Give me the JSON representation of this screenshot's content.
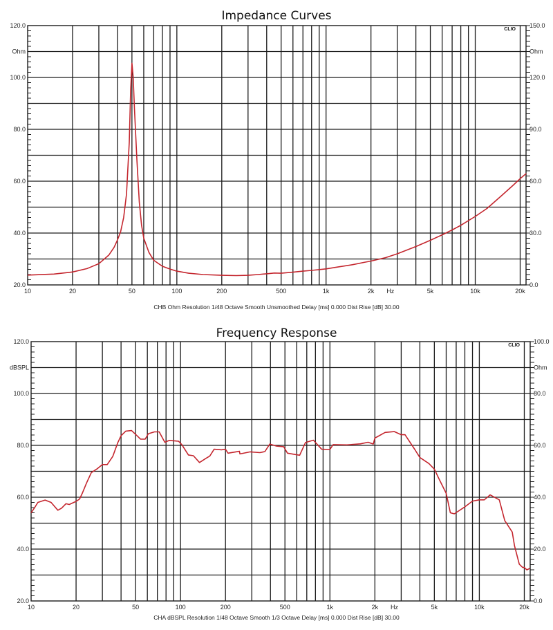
{
  "chart_data": [
    {
      "type": "line",
      "title": "Impedance Curves",
      "footer": "CHB Ohm Resolution 1/48 Octave Smooth Unsmoothed Delay [ms] 0.000 Dist Rise [dB] 30.00",
      "logo": "CLIO",
      "xscale": "log",
      "xlim": [
        10,
        21900
      ],
      "ylim": [
        20,
        120
      ],
      "ylim_right": [
        0,
        150
      ],
      "grid": true,
      "x_ticks": [
        "10",
        "20",
        "50",
        "100",
        "200",
        "500",
        "1k",
        "2k",
        "Hz",
        "5k",
        "10k",
        "20k"
      ],
      "x_tick_values": [
        10,
        20,
        50,
        100,
        200,
        500,
        1000,
        2000,
        2700,
        5000,
        10000,
        20000
      ],
      "y_ticks_left": [
        "120.0",
        "Ohm",
        "100.0",
        "80.0",
        "60.0",
        "40.0",
        "20.0"
      ],
      "y_tick_values_left": [
        120,
        110,
        100,
        80,
        60,
        40,
        20
      ],
      "y_ticks_right": [
        "150.0",
        "Ohm",
        "120.0",
        "90.0",
        "60.0",
        "30.0",
        "0.0"
      ],
      "ylabel": "Ohm",
      "xlabel": "Hz",
      "series": [
        {
          "name": "Impedance",
          "color": "#c4262e",
          "x": [
            10,
            15,
            20,
            25,
            30,
            35,
            38,
            40,
            42,
            44,
            46,
            48,
            49,
            50,
            51,
            52,
            54,
            56,
            58,
            60,
            65,
            70,
            80,
            90,
            100,
            120,
            150,
            200,
            250,
            300,
            350,
            400,
            450,
            500,
            600,
            700,
            800,
            1000,
            1200,
            1500,
            1800,
            2000,
            2500,
            3000,
            4000,
            5000,
            6000,
            7000,
            8000,
            10000,
            12000,
            15000,
            18000,
            20000,
            22000
          ],
          "y": [
            23.8,
            24.2,
            25.0,
            26.3,
            28.2,
            31.5,
            34.5,
            37.3,
            40.5,
            46,
            55,
            75,
            95,
            105.5,
            100,
            88,
            68,
            52,
            43,
            38,
            32.5,
            29.5,
            27.2,
            26.1,
            25.3,
            24.5,
            24.0,
            23.7,
            23.6,
            23.7,
            24.0,
            24.3,
            24.6,
            24.5,
            24.9,
            25.3,
            25.6,
            26.2,
            26.9,
            27.8,
            28.7,
            29.2,
            30.5,
            32.0,
            34.8,
            37.2,
            39.3,
            41.2,
            43.0,
            46.4,
            49.5,
            54.4,
            58.5,
            61,
            63
          ]
        }
      ]
    },
    {
      "type": "line",
      "title": "Frequency Response",
      "footer": "CHA dBSPL Resolution 1/48 Octave Smooth 1/3 Octave Delay [ms] 0.000 Dist Rise [dB] 30.00",
      "logo": "CLIO",
      "xscale": "log",
      "xlim": [
        10,
        21900
      ],
      "ylim": [
        20,
        120
      ],
      "ylim_right": [
        0,
        100
      ],
      "grid": true,
      "x_ticks": [
        "10",
        "20",
        "50",
        "100",
        "200",
        "500",
        "1k",
        "2k",
        "Hz",
        "5k",
        "10k",
        "20k"
      ],
      "x_tick_values": [
        10,
        20,
        50,
        100,
        200,
        500,
        1000,
        2000,
        2700,
        5000,
        10000,
        20000
      ],
      "y_ticks_left": [
        "120.0",
        "dBSPL",
        "100.0",
        "80.0",
        "60.0",
        "40.0",
        "20.0"
      ],
      "y_tick_values_left": [
        120,
        110,
        100,
        80,
        60,
        40,
        20
      ],
      "y_ticks_right": [
        "100.0",
        "Ohm",
        "80.0",
        "60.0",
        "40.0",
        "20.0",
        "0.0"
      ],
      "ylabel": "dBSPL",
      "xlabel": "Hz",
      "series": [
        {
          "name": "SPL",
          "color": "#c4262e",
          "x": [
            10,
            10.5,
            11.1,
            12.4,
            13.6,
            15.1,
            16,
            17.1,
            18,
            20,
            21.1,
            22,
            23.5,
            25.3,
            27.6,
            30,
            32.3,
            35.2,
            38,
            40,
            43,
            47,
            52,
            54,
            58,
            61,
            67,
            72,
            78.5,
            84,
            97,
            102,
            113,
            122,
            134,
            148,
            157,
            168,
            188,
            200,
            208,
            248,
            250,
            293,
            340,
            367,
            396,
            440,
            490,
            520,
            627,
            686,
            775,
            880,
            1000,
            1050,
            1300,
            1600,
            1800,
            1950,
            2000,
            2340,
            2700,
            3000,
            3180,
            3700,
            4000,
            4600,
            5000,
            5400,
            6000,
            6400,
            6800,
            8000,
            9000,
            10000,
            10800,
            11800,
            13600,
            14800,
            16600,
            17200,
            18500,
            19500,
            20000,
            20800,
            21800
          ],
          "y": [
            54,
            55.8,
            58,
            58.9,
            58,
            55,
            55.8,
            57.5,
            57.2,
            58.4,
            59.3,
            61.5,
            65.5,
            69.5,
            70.9,
            72.6,
            72.6,
            75.7,
            81,
            83.7,
            85.5,
            85.7,
            83.3,
            82.4,
            82.4,
            84.5,
            85.2,
            85.2,
            81.2,
            81.9,
            81.6,
            80.3,
            76.3,
            76,
            73.4,
            75,
            75.9,
            78.5,
            78.3,
            78.5,
            77,
            77.7,
            76.7,
            77.5,
            77.2,
            77.6,
            80.5,
            79.7,
            79.5,
            77,
            76.2,
            81.1,
            82,
            78.5,
            78.4,
            80.3,
            80.2,
            80.6,
            81.2,
            80.5,
            82.8,
            85,
            85.3,
            84.1,
            84.1,
            78.4,
            75.3,
            73,
            70.8,
            66.8,
            61.5,
            54,
            53.6,
            56.3,
            58.5,
            59,
            59,
            60.9,
            59,
            51,
            46.6,
            41.3,
            34.2,
            32.9,
            32.9,
            32,
            32.6
          ]
        }
      ]
    }
  ]
}
